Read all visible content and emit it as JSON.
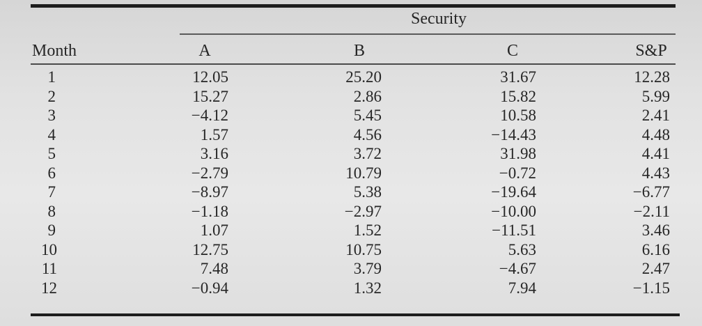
{
  "table": {
    "group_header": "Security",
    "columns": [
      "Month",
      "A",
      "B",
      "C",
      "S&P"
    ],
    "rows": [
      [
        "1",
        "12.05",
        "25.20",
        "31.67",
        "12.28"
      ],
      [
        "2",
        "15.27",
        "2.86",
        "15.82",
        "5.99"
      ],
      [
        "3",
        "−4.12",
        "5.45",
        "10.58",
        "2.41"
      ],
      [
        "4",
        "1.57",
        "4.56",
        "−14.43",
        "4.48"
      ],
      [
        "5",
        "3.16",
        "3.72",
        "31.98",
        "4.41"
      ],
      [
        "6",
        "−2.79",
        "10.79",
        "−0.72",
        "4.43"
      ],
      [
        "7",
        "−8.97",
        "5.38",
        "−19.64",
        "−6.77"
      ],
      [
        "8",
        "−1.18",
        "−2.97",
        "−10.00",
        "−2.11"
      ],
      [
        "9",
        "1.07",
        "1.52",
        "−11.51",
        "3.46"
      ],
      [
        "10",
        "12.75",
        "10.75",
        "5.63",
        "6.16"
      ],
      [
        "11",
        "7.48",
        "3.79",
        "−4.67",
        "2.47"
      ],
      [
        "12",
        "−0.94",
        "1.32",
        "7.94",
        "−1.15"
      ]
    ]
  },
  "colors": {
    "ink": "#262626",
    "paper": "#e2e2e2",
    "rule": "#1e1e1e"
  }
}
